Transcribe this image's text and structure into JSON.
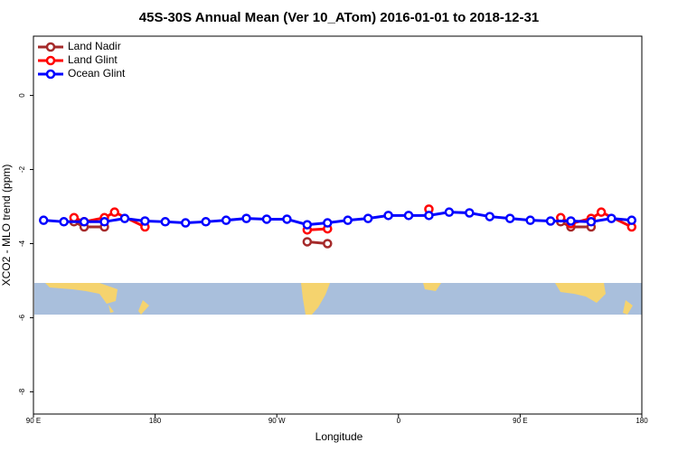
{
  "chart_data": {
    "type": "line",
    "title": "45S-30S Annual Mean (Ver 10_ATom)   2016-01-01 to 2018-12-31",
    "x_label": "Longitude",
    "y_label": "XCO2 - MLO trend (ppm)",
    "xlim": [
      90,
      540
    ],
    "ylim": [
      -8.6,
      1.6
    ],
    "xticks": [
      {
        "value": 90,
        "label": "90 E"
      },
      180,
      {
        "value": 270,
        "label": "90 W"
      },
      {
        "value": 360,
        "label": "0"
      },
      {
        "value": 450,
        "label": "90 E"
      },
      {
        "value": 540,
        "label": "180"
      }
    ],
    "yticks": [
      0,
      -2,
      -4,
      -6,
      -8
    ],
    "legend": "top-left",
    "series": [
      {
        "name": "Land Nadir",
        "color": "#a52a2a",
        "x": [
          120,
          127.5,
          142.5,
          null,
          292.5,
          307.5,
          null,
          480,
          487.5,
          502.5
        ],
        "values": [
          -3.41,
          -3.55,
          -3.55,
          null,
          -3.95,
          -4.0,
          null,
          -3.41,
          -3.55,
          -3.55
        ]
      },
      {
        "name": "Land Glint",
        "color": "#ff0000",
        "x": [
          120,
          127.5,
          142.5,
          150,
          172.5,
          null,
          292.5,
          307.5,
          null,
          382.5,
          null,
          480,
          487.5,
          502.5,
          510,
          532.5
        ],
        "values": [
          -3.3,
          -3.41,
          -3.3,
          -3.15,
          -3.55,
          null,
          -3.63,
          -3.6,
          null,
          -3.07,
          null,
          -3.3,
          -3.46,
          -3.32,
          -3.15,
          -3.55
        ]
      },
      {
        "name": "Ocean Glint",
        "color": "#0000ff",
        "x": [
          97.5,
          112.5,
          127.5,
          142.5,
          157.5,
          172.5,
          187.5,
          202.5,
          217.5,
          232.5,
          247.5,
          262.5,
          277.5,
          292.5,
          307.5,
          322.5,
          337.5,
          352.5,
          367.5,
          382.5,
          397.5,
          412.5,
          427.5,
          442.5,
          457.5,
          472.5,
          487.5,
          502.5,
          517.5,
          532.5
        ],
        "values": [
          -3.37,
          -3.41,
          -3.41,
          -3.41,
          -3.32,
          -3.39,
          -3.41,
          -3.44,
          -3.41,
          -3.37,
          -3.32,
          -3.34,
          -3.34,
          -3.49,
          -3.44,
          -3.37,
          -3.32,
          -3.24,
          -3.24,
          -3.24,
          -3.15,
          -3.17,
          -3.27,
          -3.32,
          -3.37,
          -3.39,
          -3.39,
          -3.41,
          -3.32,
          -3.37
        ]
      }
    ]
  }
}
